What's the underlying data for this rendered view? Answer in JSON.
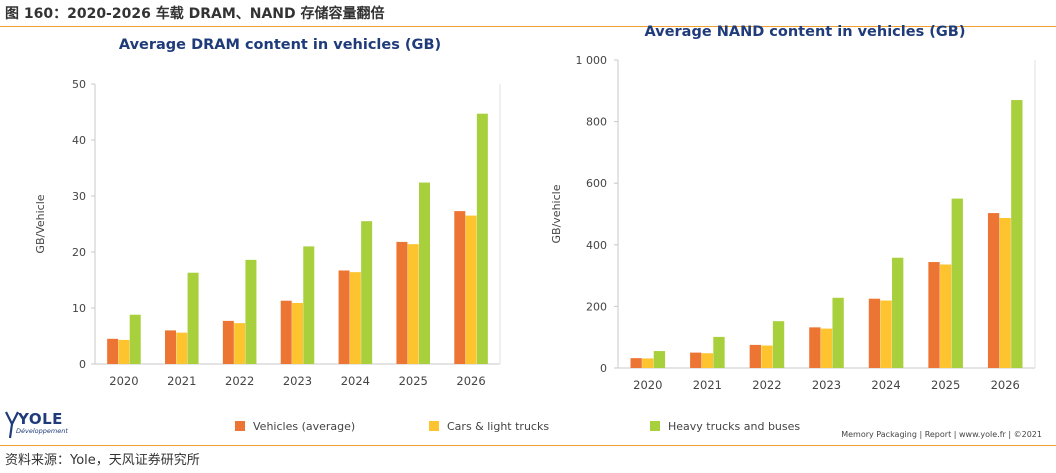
{
  "figure": {
    "title": "图 160：2020-2026 车载 DRAM、NAND 存储容量翻倍",
    "source": "资料来源：Yole，天风证券研究所",
    "credit": "Memory Packaging | Report | www.yole.fr | ©2021",
    "logo_text": "YOLE",
    "logo_sub": "Développement"
  },
  "legend": [
    {
      "name": "Vehicles (average)",
      "color": "#ed7533"
    },
    {
      "name": "Cars & light trucks",
      "color": "#fdc42f"
    },
    {
      "name": "Heavy trucks and buses",
      "color": "#a8cf3c"
    }
  ],
  "chart_data": [
    {
      "type": "bar",
      "title": "Average DRAM content in vehicles (GB)",
      "xlabel": "",
      "ylabel": "GB/Vehicle",
      "ylim": [
        0,
        50
      ],
      "yticks": [
        0,
        10,
        20,
        30,
        40,
        50
      ],
      "ytick_labels": [
        "0",
        "10",
        "20",
        "30",
        "40",
        "50"
      ],
      "categories": [
        "2020",
        "2021",
        "2022",
        "2023",
        "2024",
        "2025",
        "2026"
      ],
      "series": [
        {
          "name": "Vehicles (average)",
          "values": [
            4.5,
            6.0,
            7.7,
            11.3,
            16.7,
            21.8,
            27.3
          ]
        },
        {
          "name": "Cars & light trucks",
          "values": [
            4.3,
            5.6,
            7.3,
            10.9,
            16.4,
            21.4,
            26.5
          ]
        },
        {
          "name": "Heavy trucks and buses",
          "values": [
            8.8,
            16.3,
            18.6,
            21.0,
            25.5,
            32.4,
            44.7
          ]
        }
      ]
    },
    {
      "type": "bar",
      "title": "Average NAND content in vehicles (GB)",
      "xlabel": "",
      "ylabel": "GB/vehicle",
      "ylim": [
        0,
        1000
      ],
      "yticks": [
        0,
        200,
        400,
        600,
        800,
        1000
      ],
      "ytick_labels": [
        "0",
        "200",
        "400",
        "600",
        "800",
        "1 000"
      ],
      "categories": [
        "2020",
        "2021",
        "2022",
        "2023",
        "2024",
        "2025",
        "2026"
      ],
      "series": [
        {
          "name": "Vehicles (average)",
          "values": [
            32,
            50,
            75,
            132,
            225,
            344,
            503
          ]
        },
        {
          "name": "Cars & light trucks",
          "values": [
            31,
            48,
            73,
            128,
            219,
            336,
            487
          ]
        },
        {
          "name": "Heavy trucks and buses",
          "values": [
            55,
            101,
            152,
            228,
            358,
            550,
            870
          ]
        }
      ]
    }
  ]
}
